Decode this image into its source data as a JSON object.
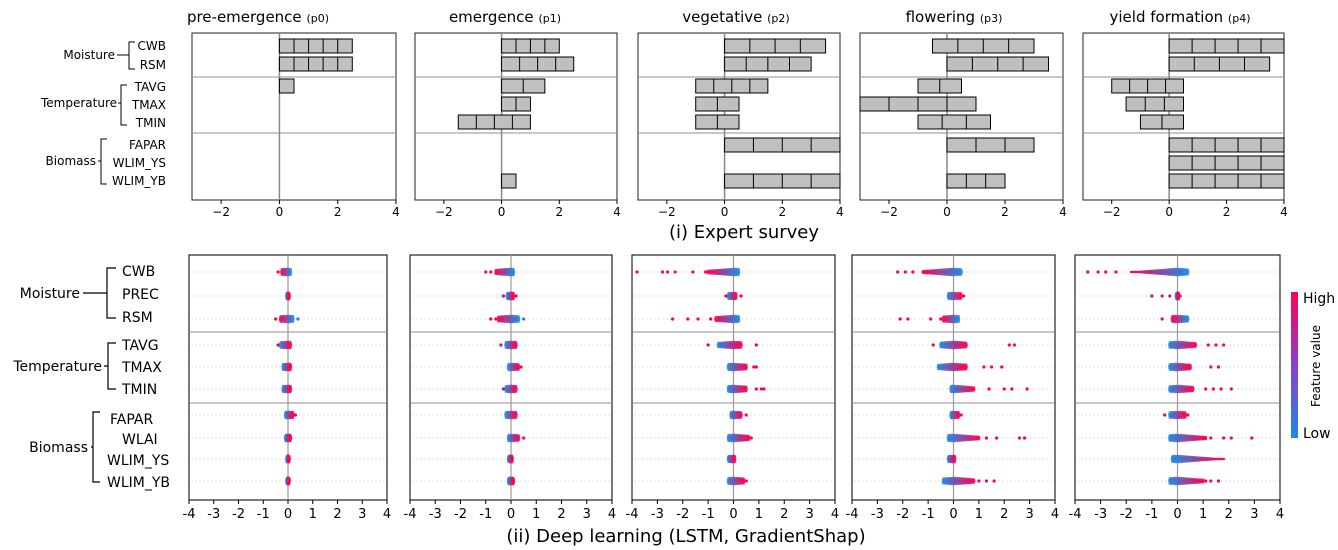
{
  "figure": {
    "caption_expert": "(i) Expert survey",
    "caption_dl": "(ii) Deep learning (LSTM, GradientShap)",
    "colorbar": {
      "high": "High",
      "low": "Low",
      "label": "Feature value",
      "high_color": "#ff0052",
      "low_color": "#1e88e5"
    },
    "bar_color": "#c0c0c0",
    "separator_color": "#c8c8c8"
  },
  "chart_data": [
    {
      "type": "bar",
      "orientation": "horizontal",
      "title": "(i) Expert survey",
      "xlim": [
        -3,
        4
      ],
      "xticks": [
        "−2",
        "0",
        "2",
        "4"
      ],
      "panels": [
        {
          "title": "pre-emergence",
          "subtitle": "(p0)"
        },
        {
          "title": "emergence",
          "subtitle": "(p1)"
        },
        {
          "title": "vegetative",
          "subtitle": "(p2)"
        },
        {
          "title": "flowering",
          "subtitle": "(p3)"
        },
        {
          "title": "yield formation",
          "subtitle": "(p4)"
        }
      ],
      "groups": [
        {
          "name": "Moisture",
          "features": [
            "CWB",
            "RSM"
          ]
        },
        {
          "name": "Temperature",
          "features": [
            "TAVG",
            "TMAX",
            "TMIN"
          ]
        },
        {
          "name": "Biomass",
          "features": [
            "FAPAR",
            "WLIM_YS",
            "WLIM_YB"
          ]
        }
      ],
      "features": [
        "CWB",
        "RSM",
        "TAVG",
        "TMAX",
        "TMIN",
        "FAPAR",
        "WLIM_YS",
        "WLIM_YB"
      ],
      "series": [
        {
          "panel": "p0",
          "ranges": [
            [
              0,
              2.5
            ],
            [
              0,
              2.5
            ],
            [
              0,
              0.5
            ],
            null,
            null,
            null,
            null,
            null
          ],
          "segments": [
            5,
            5,
            1,
            0,
            0,
            0,
            0,
            0
          ]
        },
        {
          "panel": "p1",
          "ranges": [
            [
              0,
              2
            ],
            [
              0,
              2.5
            ],
            [
              0,
              1.5
            ],
            [
              0,
              1
            ],
            [
              -1.5,
              1
            ],
            null,
            null,
            [
              0,
              0.5
            ]
          ],
          "segments": [
            4,
            4,
            2,
            2,
            4,
            0,
            0,
            1
          ]
        },
        {
          "panel": "p2",
          "ranges": [
            [
              0,
              3.5
            ],
            [
              0,
              3
            ],
            [
              -1,
              1.5
            ],
            [
              -1,
              0.5
            ],
            [
              -1,
              0.5
            ],
            [
              0,
              4
            ],
            null,
            [
              0,
              4
            ]
          ],
          "segments": [
            4,
            4,
            4,
            2,
            2,
            4,
            0,
            4
          ]
        },
        {
          "panel": "p3",
          "ranges": [
            [
              -0.5,
              3
            ],
            [
              0,
              3.5
            ],
            [
              -1,
              0.5
            ],
            [
              -3,
              1
            ],
            [
              -1,
              1.5
            ],
            [
              0,
              3
            ],
            null,
            [
              0,
              2
            ]
          ],
          "segments": [
            4,
            4,
            2,
            4,
            3,
            3,
            0,
            3
          ]
        },
        {
          "panel": "p4",
          "ranges": [
            [
              0,
              4
            ],
            [
              0,
              3.5
            ],
            [
              -2,
              0.5
            ],
            [
              -1.5,
              0.5
            ],
            [
              -1,
              0.5
            ],
            [
              0,
              4
            ],
            [
              0,
              4
            ],
            [
              0,
              4
            ]
          ],
          "segments": [
            5,
            4,
            4,
            3,
            2,
            5,
            5,
            5
          ]
        }
      ]
    },
    {
      "type": "scatter",
      "subtype": "shap-beeswarm",
      "title": "(ii) Deep learning (LSTM, GradientShap)",
      "xlim": [
        -4,
        4
      ],
      "xticks": [
        "-4",
        "-3",
        "-2",
        "-1",
        "0",
        "1",
        "2",
        "3",
        "4"
      ],
      "colorbar": {
        "label": "Feature value",
        "high": "High",
        "low": "Low"
      },
      "groups": [
        {
          "name": "Moisture",
          "features": [
            "CWB",
            "PREC",
            "RSM"
          ]
        },
        {
          "name": "Temperature",
          "features": [
            "TAVG",
            "TMAX",
            "TMIN"
          ]
        },
        {
          "name": "Biomass",
          "features": [
            "FAPAR",
            "WLAI",
            "WLIM_YS",
            "WLIM_YB"
          ]
        }
      ],
      "features": [
        "CWB",
        "PREC",
        "RSM",
        "TAVG",
        "TMAX",
        "TMIN",
        "FAPAR",
        "WLAI",
        "WLIM_YS",
        "WLIM_YB"
      ],
      "series": [
        {
          "panel": "p0",
          "core": [
            [
              -0.25,
              0.1
            ],
            [
              -0.05,
              0.05
            ],
            [
              -0.3,
              0.2
            ],
            [
              -0.3,
              0.1
            ],
            [
              -0.2,
              0.1
            ],
            [
              -0.2,
              0.1
            ],
            [
              -0.1,
              0.2
            ],
            [
              -0.1,
              0.1
            ],
            [
              -0.05,
              0.05
            ],
            [
              -0.05,
              0.05
            ]
          ],
          "outliers": [
            [
              -0.4
            ],
            [],
            [
              -0.5,
              0.4
            ],
            [
              -0.4
            ],
            [],
            [],
            [
              0.3
            ],
            [],
            [],
            []
          ]
        },
        {
          "panel": "p1",
          "core": [
            [
              -0.6,
              0.1
            ],
            [
              -0.15,
              0.1
            ],
            [
              -0.5,
              0.3
            ],
            [
              -0.2,
              0.2
            ],
            [
              -0.1,
              0.3
            ],
            [
              -0.2,
              0.2
            ],
            [
              -0.2,
              0.2
            ],
            [
              -0.1,
              0.3
            ],
            [
              -0.1,
              0.05
            ],
            [
              -0.1,
              0.1
            ]
          ],
          "outliers": [
            [
              -1.0,
              -0.8
            ],
            [
              -0.3,
              0.2
            ],
            [
              -0.8,
              -0.6,
              0.5
            ],
            [
              -0.4
            ],
            [
              0.4
            ],
            [
              -0.3
            ],
            [],
            [
              0.5
            ],
            [],
            []
          ]
        },
        {
          "panel": "p2",
          "core": [
            [
              -1.0,
              0.2
            ],
            [
              -0.2,
              0.1
            ],
            [
              -0.7,
              0.2
            ],
            [
              -0.6,
              0.3
            ],
            [
              -0.2,
              0.5
            ],
            [
              -0.2,
              0.5
            ],
            [
              -0.1,
              0.3
            ],
            [
              -0.2,
              0.6
            ],
            [
              -0.2,
              0.05
            ],
            [
              -0.2,
              0.4
            ]
          ],
          "outliers": [
            [
              -3.8,
              -2.8,
              -2.6,
              -2.3,
              -1.6,
              -1.1
            ],
            [
              -0.3,
              0.3
            ],
            [
              -2.4,
              -1.8,
              -1.4,
              -0.9
            ],
            [
              -1.0,
              0.9
            ],
            [
              0.8,
              0.9
            ],
            [
              0.9,
              1.1,
              1.2
            ],
            [
              0.5
            ],
            [
              0.7
            ],
            [],
            [
              0.5
            ]
          ]
        },
        {
          "panel": "p3",
          "core": [
            [
              -1.2,
              0.3
            ],
            [
              -0.2,
              0.3
            ],
            [
              -0.4,
              0.2
            ],
            [
              -0.5,
              0.5
            ],
            [
              -0.6,
              0.5
            ],
            [
              -0.1,
              0.8
            ],
            [
              -0.1,
              0.2
            ],
            [
              -0.2,
              1.0
            ],
            [
              -0.2,
              0.05
            ],
            [
              -0.4,
              0.8
            ]
          ],
          "outliers": [
            [
              -2.2,
              -1.9,
              -1.6
            ],
            [
              0.4
            ],
            [
              -2.1,
              -1.8,
              -0.9,
              -0.5
            ],
            [
              -0.8,
              2.2,
              2.4
            ],
            [
              1.2,
              1.5,
              1.9
            ],
            [
              1.4,
              2.0,
              2.3,
              2.9
            ],
            [
              0.3
            ],
            [
              1.3,
              1.7,
              2.6,
              2.8
            ],
            [],
            [
              1.0,
              1.3,
              1.6
            ]
          ]
        },
        {
          "panel": "p4",
          "core": [
            [
              -1.8,
              0.4
            ],
            [
              -0.05,
              0.05
            ],
            [
              -0.2,
              0.4
            ],
            [
              -0.3,
              0.7
            ],
            [
              -0.3,
              0.5
            ],
            [
              -0.3,
              0.6
            ],
            [
              -0.3,
              0.3
            ],
            [
              -0.3,
              1.1
            ],
            [
              -0.2,
              1.8
            ],
            [
              -0.3,
              1.0
            ]
          ],
          "outliers": [
            [
              -3.5,
              -3.1,
              -2.8,
              -2.4
            ],
            [
              -1.0,
              -0.6,
              -0.3,
              0.1
            ],
            [
              -0.6
            ],
            [
              1.2,
              1.5,
              1.8
            ],
            [
              1.3,
              1.6
            ],
            [
              1.1,
              1.4,
              1.7,
              2.1
            ],
            [
              -0.5,
              0.4
            ],
            [
              1.3,
              1.8,
              2.1,
              2.9
            ],
            [],
            [
              1.1,
              1.3,
              1.6
            ]
          ]
        }
      ]
    }
  ]
}
